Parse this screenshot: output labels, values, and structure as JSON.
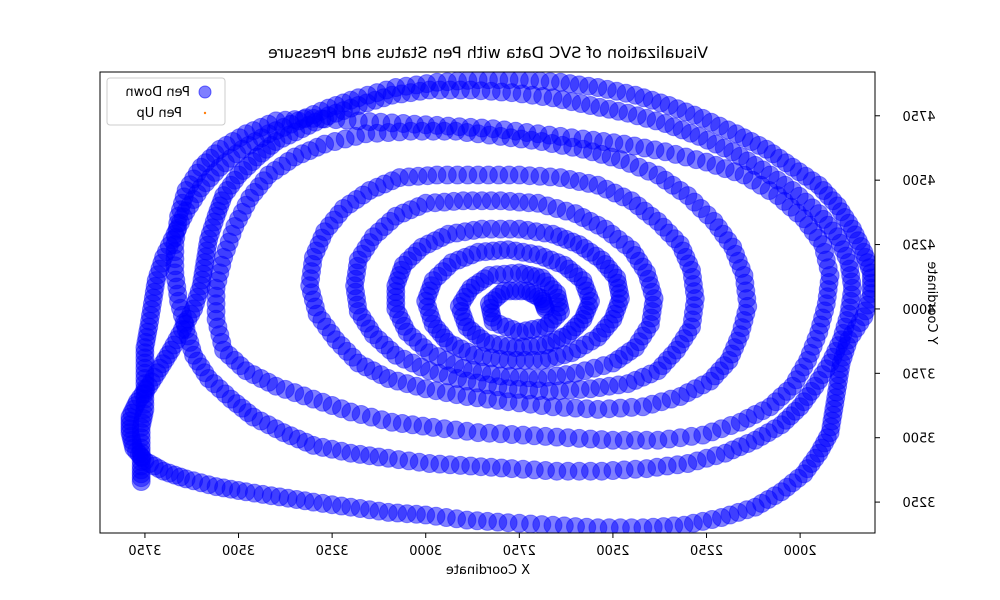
{
  "chart_data": {
    "type": "scatter",
    "title": "Visualization of SVC Data with Pen Status and Pressure",
    "xlabel": "X Coordinate",
    "ylabel": "Y Coordinate",
    "x_axis_inverted": true,
    "ylim_note": "axis on right side",
    "xlim": [
      1800,
      3870
    ],
    "ylim": [
      3130,
      4920
    ],
    "x_ticks": [
      2000,
      2250,
      2500,
      2750,
      3000,
      3250,
      3500,
      3750
    ],
    "y_ticks": [
      3250,
      3500,
      3750,
      4000,
      4250,
      4500,
      4750
    ],
    "x_tick_labels": [
      "2000",
      "2250",
      "2500",
      "2750",
      "3000",
      "3250",
      "3500",
      "3750"
    ],
    "y_tick_labels": [
      "3250",
      "3500",
      "3750",
      "4000",
      "4250",
      "4500",
      "4750"
    ],
    "legend_placement": "top-left",
    "grid": false,
    "series": [
      {
        "name": "Pen Down",
        "color": "#0000ff",
        "marker": "circle-large",
        "points": [
          [
            2680,
            4000
          ],
          [
            2690,
            4040
          ],
          [
            2730,
            4070
          ],
          [
            2790,
            4070
          ],
          [
            2830,
            4020
          ],
          [
            2820,
            3950
          ],
          [
            2750,
            3910
          ],
          [
            2680,
            3930
          ],
          [
            2640,
            3990
          ],
          [
            2650,
            4060
          ],
          [
            2690,
            4120
          ],
          [
            2750,
            4140
          ],
          [
            2830,
            4130
          ],
          [
            2880,
            4080
          ],
          [
            2910,
            4010
          ],
          [
            2890,
            3930
          ],
          [
            2840,
            3870
          ],
          [
            2760,
            3850
          ],
          [
            2680,
            3860
          ],
          [
            2620,
            3900
          ],
          [
            2580,
            3960
          ],
          [
            2560,
            4030
          ],
          [
            2580,
            4110
          ],
          [
            2630,
            4170
          ],
          [
            2700,
            4210
          ],
          [
            2780,
            4230
          ],
          [
            2860,
            4220
          ],
          [
            2930,
            4180
          ],
          [
            2980,
            4110
          ],
          [
            3000,
            4030
          ],
          [
            2980,
            3940
          ],
          [
            2940,
            3870
          ],
          [
            2870,
            3820
          ],
          [
            2780,
            3800
          ],
          [
            2690,
            3800
          ],
          [
            2610,
            3830
          ],
          [
            2540,
            3890
          ],
          [
            2500,
            3960
          ],
          [
            2480,
            4040
          ],
          [
            2490,
            4120
          ],
          [
            2530,
            4190
          ],
          [
            2590,
            4250
          ],
          [
            2660,
            4290
          ],
          [
            2750,
            4310
          ],
          [
            2850,
            4310
          ],
          [
            2940,
            4290
          ],
          [
            3010,
            4240
          ],
          [
            3060,
            4170
          ],
          [
            3080,
            4090
          ],
          [
            3080,
            4000
          ],
          [
            3050,
            3910
          ],
          [
            2990,
            3830
          ],
          [
            2900,
            3770
          ],
          [
            2800,
            3740
          ],
          [
            2700,
            3730
          ],
          [
            2600,
            3750
          ],
          [
            2500,
            3790
          ],
          [
            2440,
            3850
          ],
          [
            2400,
            3940
          ],
          [
            2390,
            4040
          ],
          [
            2410,
            4140
          ],
          [
            2450,
            4230
          ],
          [
            2520,
            4310
          ],
          [
            2600,
            4370
          ],
          [
            2700,
            4410
          ],
          [
            2800,
            4420
          ],
          [
            2900,
            4420
          ],
          [
            3000,
            4410
          ],
          [
            3080,
            4360
          ],
          [
            3140,
            4280
          ],
          [
            3180,
            4190
          ],
          [
            3190,
            4090
          ],
          [
            3180,
            3990
          ],
          [
            3140,
            3900
          ],
          [
            3080,
            3820
          ],
          [
            2990,
            3760
          ],
          [
            2890,
            3720
          ],
          [
            2780,
            3690
          ],
          [
            2670,
            3680
          ],
          [
            2560,
            3690
          ],
          [
            2460,
            3710
          ],
          [
            2380,
            3760
          ],
          [
            2330,
            3840
          ],
          [
            2290,
            3930
          ],
          [
            2280,
            4040
          ],
          [
            2290,
            4150
          ],
          [
            2320,
            4250
          ],
          [
            2380,
            4340
          ],
          [
            2450,
            4420
          ],
          [
            2540,
            4480
          ],
          [
            2640,
            4510
          ],
          [
            2750,
            4520
          ],
          [
            2860,
            4520
          ],
          [
            2970,
            4520
          ],
          [
            3070,
            4510
          ],
          [
            3150,
            4460
          ],
          [
            3220,
            4390
          ],
          [
            3270,
            4300
          ],
          [
            3300,
            4200
          ],
          [
            3310,
            4090
          ],
          [
            3290,
            3980
          ],
          [
            3240,
            3880
          ],
          [
            3180,
            3790
          ],
          [
            3100,
            3730
          ],
          [
            3000,
            3690
          ],
          [
            2890,
            3660
          ],
          [
            2780,
            3640
          ],
          [
            2660,
            3620
          ],
          [
            2540,
            3610
          ],
          [
            2420,
            3620
          ],
          [
            2320,
            3660
          ],
          [
            2240,
            3720
          ],
          [
            2190,
            3800
          ],
          [
            2160,
            3900
          ],
          [
            2140,
            4010
          ],
          [
            2150,
            4130
          ],
          [
            2180,
            4240
          ],
          [
            2230,
            4340
          ],
          [
            2300,
            4440
          ],
          [
            2380,
            4520
          ],
          [
            2480,
            4580
          ],
          [
            2580,
            4620
          ],
          [
            2690,
            4650
          ],
          [
            2800,
            4670
          ],
          [
            2920,
            4690
          ],
          [
            3040,
            4690
          ],
          [
            3160,
            4680
          ],
          [
            3270,
            4640
          ],
          [
            3350,
            4590
          ],
          [
            3420,
            4520
          ],
          [
            3470,
            4430
          ],
          [
            3510,
            4320
          ],
          [
            3540,
            4200
          ],
          [
            3560,
            4080
          ],
          [
            3560,
            3960
          ],
          [
            3540,
            3840
          ],
          [
            3480,
            3760
          ],
          [
            3400,
            3700
          ],
          [
            3300,
            3650
          ],
          [
            3200,
            3600
          ],
          [
            3090,
            3560
          ],
          [
            2980,
            3540
          ],
          [
            2860,
            3520
          ],
          [
            2740,
            3510
          ],
          [
            2620,
            3500
          ],
          [
            2500,
            3490
          ],
          [
            2380,
            3490
          ],
          [
            2260,
            3510
          ],
          [
            2160,
            3560
          ],
          [
            2080,
            3620
          ],
          [
            2020,
            3700
          ],
          [
            1980,
            3800
          ],
          [
            1950,
            3910
          ],
          [
            1930,
            4020
          ],
          [
            1920,
            4130
          ],
          [
            1940,
            4250
          ],
          [
            1990,
            4350
          ],
          [
            2060,
            4440
          ],
          [
            2150,
            4520
          ],
          [
            2250,
            4570
          ],
          [
            2360,
            4610
          ],
          [
            2470,
            4640
          ],
          [
            2580,
            4660
          ],
          [
            2700,
            4680
          ],
          [
            2820,
            4700
          ],
          [
            2940,
            4710
          ],
          [
            3060,
            4720
          ],
          [
            3180,
            4730
          ],
          [
            3300,
            4740
          ],
          [
            3400,
            4730
          ],
          [
            3480,
            4680
          ],
          [
            3550,
            4620
          ],
          [
            3600,
            4550
          ],
          [
            3640,
            4460
          ],
          [
            3660,
            4360
          ],
          [
            3670,
            4250
          ],
          [
            3670,
            4140
          ],
          [
            3660,
            4030
          ],
          [
            3640,
            3920
          ],
          [
            3620,
            3820
          ],
          [
            3580,
            3730
          ],
          [
            3520,
            3650
          ],
          [
            3460,
            3580
          ],
          [
            3380,
            3520
          ],
          [
            3300,
            3470
          ],
          [
            3200,
            3440
          ],
          [
            3100,
            3420
          ],
          [
            2990,
            3400
          ],
          [
            2880,
            3390
          ],
          [
            2770,
            3380
          ],
          [
            2650,
            3370
          ],
          [
            2530,
            3370
          ],
          [
            2410,
            3380
          ],
          [
            2300,
            3400
          ],
          [
            2200,
            3440
          ],
          [
            2120,
            3490
          ],
          [
            2050,
            3550
          ],
          [
            2000,
            3620
          ],
          [
            1960,
            3700
          ],
          [
            1920,
            3790
          ],
          [
            1890,
            3880
          ],
          [
            1870,
            3980
          ],
          [
            1860,
            4080
          ],
          [
            1870,
            4180
          ],
          [
            1900,
            4280
          ],
          [
            1950,
            4370
          ],
          [
            2020,
            4460
          ],
          [
            2100,
            4540
          ],
          [
            2180,
            4610
          ],
          [
            2270,
            4670
          ],
          [
            2360,
            4720
          ],
          [
            2460,
            4760
          ],
          [
            2560,
            4790
          ],
          [
            2660,
            4820
          ],
          [
            2770,
            4840
          ],
          [
            2880,
            4850
          ],
          [
            2990,
            4850
          ],
          [
            3090,
            4830
          ],
          [
            3180,
            4790
          ],
          [
            3260,
            4750
          ],
          [
            3330,
            4700
          ],
          [
            3400,
            4650
          ],
          [
            3450,
            4590
          ],
          [
            3500,
            4520
          ],
          [
            3540,
            4440
          ],
          [
            3560,
            4360
          ],
          [
            3580,
            4270
          ],
          [
            3590,
            4180
          ],
          [
            3600,
            4090
          ],
          [
            3620,
            4000
          ],
          [
            3650,
            3920
          ],
          [
            3680,
            3840
          ],
          [
            3710,
            3770
          ],
          [
            3740,
            3700
          ],
          [
            3770,
            3640
          ],
          [
            3790,
            3580
          ],
          [
            3790,
            3520
          ],
          [
            3780,
            3460
          ],
          [
            3750,
            3410
          ],
          [
            3700,
            3370
          ],
          [
            3640,
            3340
          ],
          [
            3560,
            3310
          ],
          [
            3480,
            3290
          ],
          [
            3390,
            3270
          ],
          [
            3300,
            3250
          ],
          [
            3200,
            3230
          ],
          [
            3100,
            3210
          ],
          [
            3000,
            3200
          ],
          [
            2890,
            3180
          ],
          [
            2780,
            3170
          ],
          [
            2660,
            3160
          ],
          [
            2540,
            3150
          ],
          [
            2420,
            3150
          ],
          [
            2310,
            3160
          ],
          [
            2210,
            3190
          ],
          [
            2120,
            3230
          ],
          [
            2050,
            3290
          ],
          [
            1990,
            3360
          ],
          [
            1950,
            3440
          ],
          [
            1920,
            3520
          ],
          [
            1910,
            3610
          ],
          [
            1900,
            3700
          ],
          [
            1890,
            3790
          ],
          [
            1870,
            3880
          ],
          [
            1830,
            3970
          ],
          [
            1810,
            4060
          ],
          [
            1810,
            4140
          ],
          [
            1830,
            4220
          ],
          [
            1860,
            4310
          ],
          [
            1900,
            4400
          ],
          [
            1950,
            4480
          ],
          [
            2020,
            4550
          ],
          [
            2090,
            4620
          ],
          [
            2170,
            4680
          ],
          [
            2260,
            4740
          ],
          [
            2350,
            4790
          ],
          [
            2440,
            4830
          ],
          [
            2540,
            4860
          ],
          [
            2640,
            4880
          ],
          [
            2750,
            4890
          ],
          [
            2860,
            4890
          ],
          [
            2970,
            4880
          ],
          [
            3080,
            4860
          ],
          [
            3180,
            4820
          ],
          [
            3260,
            4780
          ],
          [
            3340,
            4730
          ],
          [
            3420,
            4680
          ],
          [
            3490,
            4620
          ],
          [
            3550,
            4550
          ],
          [
            3600,
            4470
          ],
          [
            3640,
            4380
          ],
          [
            3670,
            4290
          ],
          [
            3700,
            4200
          ],
          [
            3720,
            4110
          ],
          [
            3730,
            4020
          ],
          [
            3740,
            3930
          ],
          [
            3750,
            3850
          ],
          [
            3750,
            3770
          ],
          [
            3750,
            3690
          ],
          [
            3750,
            3610
          ],
          [
            3760,
            3540
          ],
          [
            3760,
            3460
          ],
          [
            3760,
            3390
          ],
          [
            3760,
            3330
          ]
        ]
      },
      {
        "name": "Pen Up",
        "color": "#ff7f0e",
        "marker": "dot-small",
        "points": []
      }
    ]
  }
}
